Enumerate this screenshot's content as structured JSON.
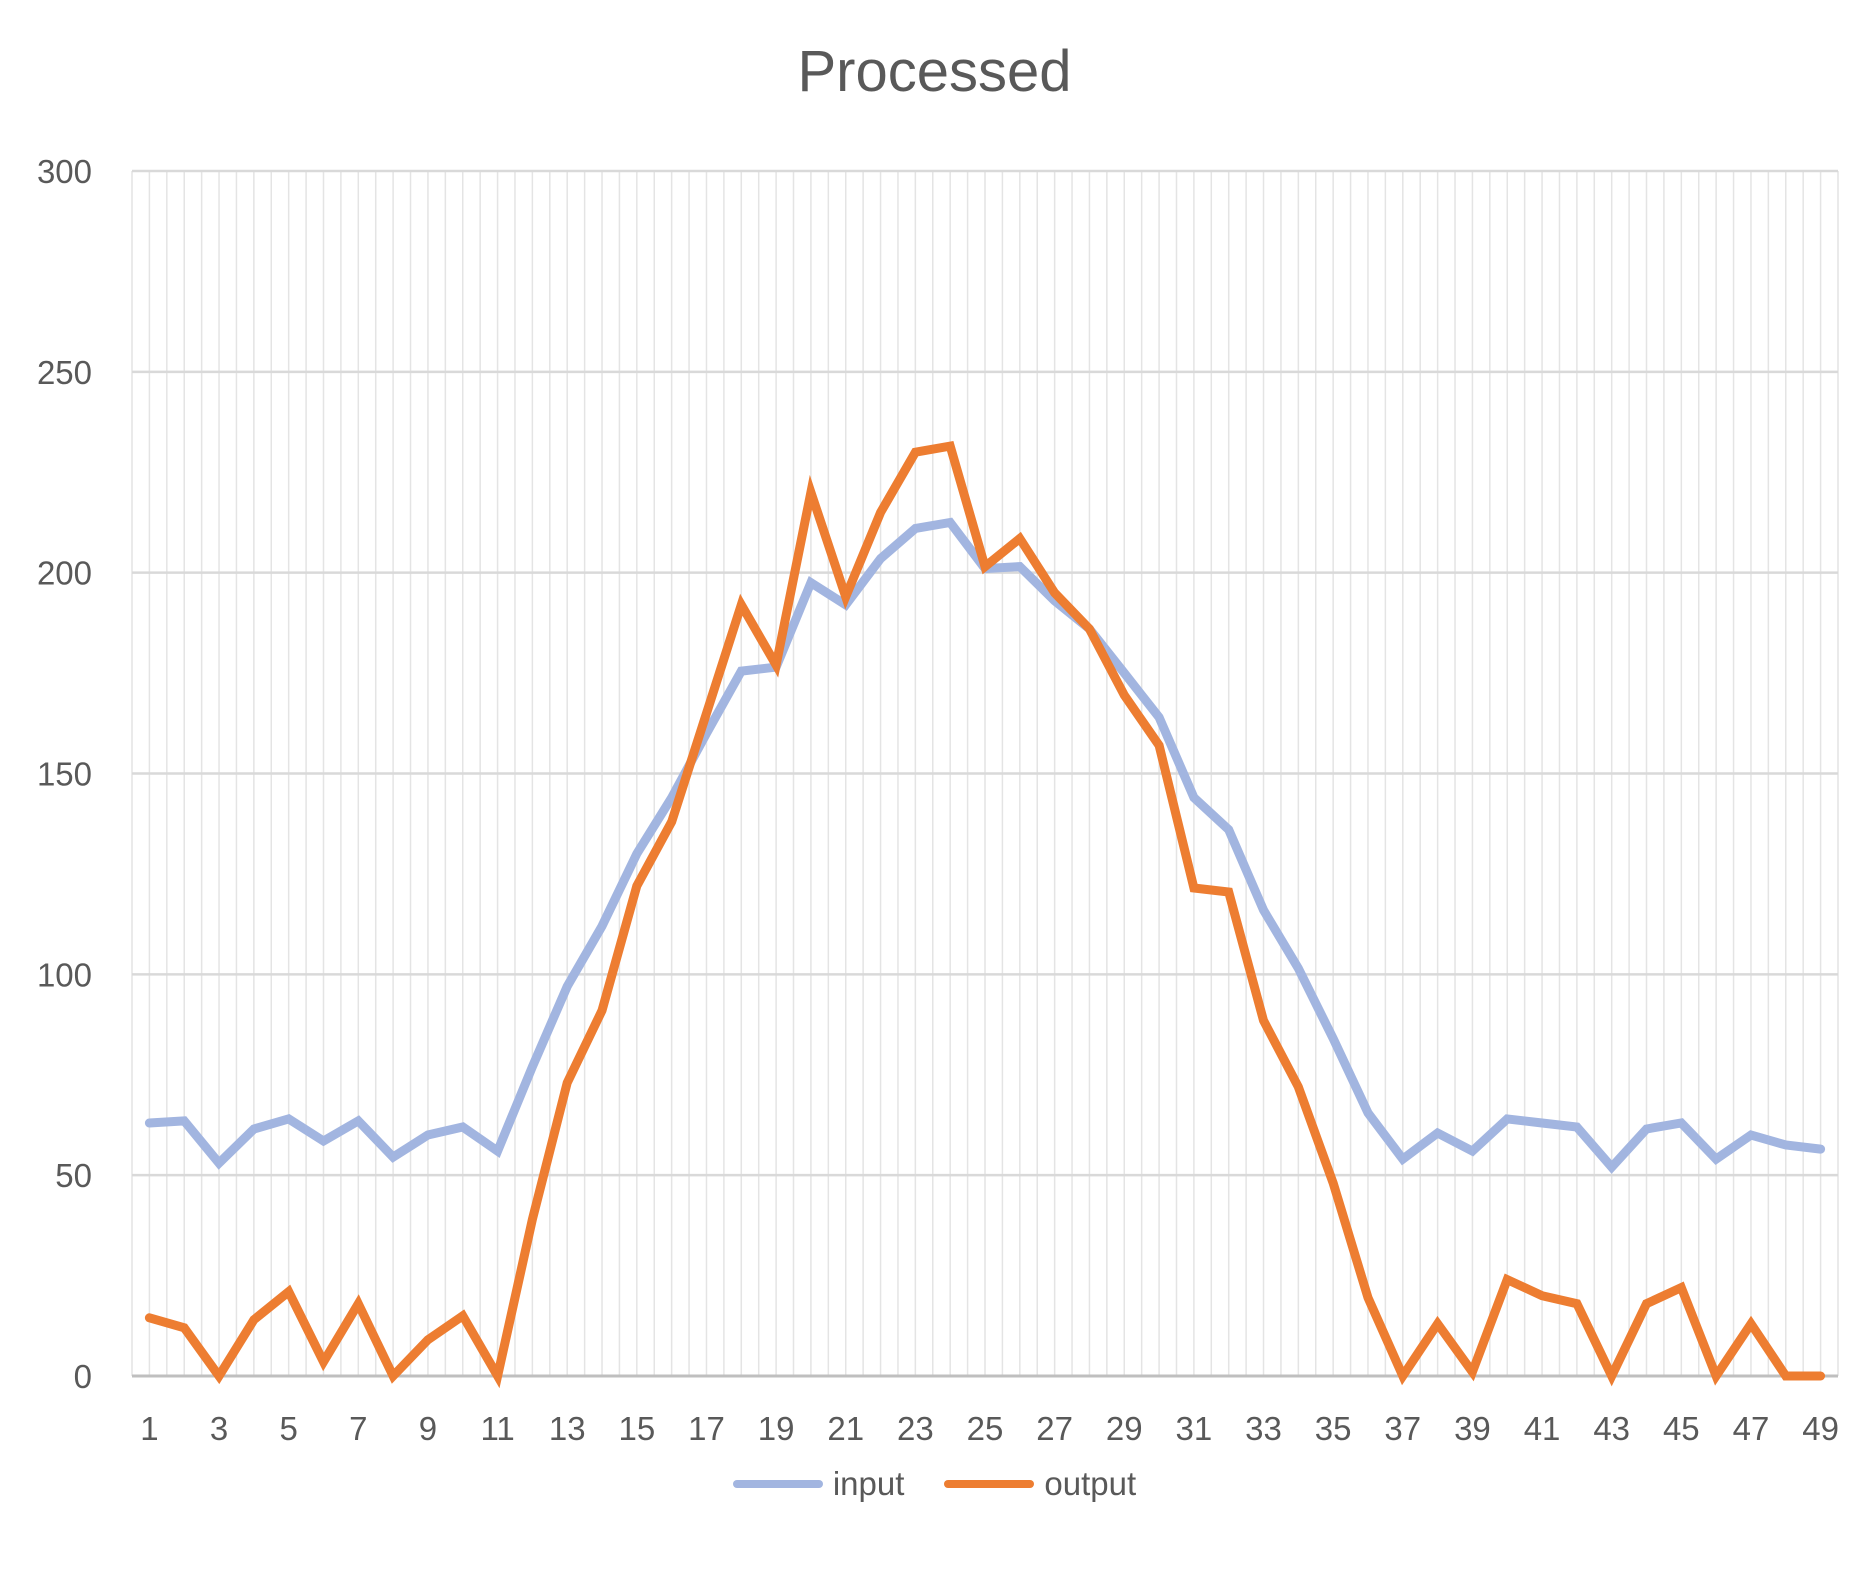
{
  "chart_data": {
    "type": "line",
    "title": "Processed",
    "xlabel": "",
    "ylabel": "",
    "ylim": [
      0,
      300
    ],
    "yticks": [
      0,
      50,
      100,
      150,
      200,
      250,
      300
    ],
    "x": [
      1,
      2,
      3,
      4,
      5,
      6,
      7,
      8,
      9,
      10,
      11,
      12,
      13,
      14,
      15,
      16,
      17,
      18,
      19,
      20,
      21,
      22,
      23,
      24,
      25,
      26,
      27,
      28,
      29,
      30,
      31,
      32,
      33,
      34,
      35,
      36,
      37,
      38,
      39,
      40,
      41,
      42,
      43,
      44,
      45,
      46,
      47,
      48,
      49
    ],
    "xtick_labels": [
      "1",
      "3",
      "5",
      "7",
      "9",
      "11",
      "13",
      "15",
      "17",
      "19",
      "21",
      "23",
      "25",
      "27",
      "29",
      "31",
      "33",
      "35",
      "37",
      "39",
      "41",
      "43",
      "45",
      "47",
      "49"
    ],
    "grid": true,
    "legend_position": "bottom",
    "series": [
      {
        "name": "input",
        "color": "#A2B5E0",
        "values": [
          63,
          63.5,
          53,
          61.5,
          64,
          58.5,
          63.5,
          54.5,
          60,
          62,
          56,
          77,
          97,
          112,
          130,
          144,
          160,
          175.5,
          176.5,
          197.5,
          192,
          203.5,
          211,
          212.5,
          201,
          201.5,
          193,
          186,
          175,
          164,
          144,
          136,
          116,
          101.5,
          84,
          65.5,
          54,
          60.5,
          56,
          64,
          63,
          62,
          52,
          61.5,
          63,
          54,
          60,
          57.5,
          56.5
        ]
      },
      {
        "name": "output",
        "color": "#ED7D31",
        "values": [
          14.5,
          12,
          0,
          14,
          21,
          3.5,
          18,
          0,
          9,
          15,
          0,
          39,
          73,
          91,
          122,
          138,
          165,
          192,
          177,
          220,
          194,
          215,
          230,
          231.5,
          201.5,
          208.5,
          195,
          186,
          169.5,
          157,
          121.5,
          120.5,
          88.5,
          72,
          48,
          19.5,
          0,
          13,
          1,
          24,
          20,
          18,
          0,
          18,
          22,
          0,
          13,
          0,
          0
        ]
      }
    ]
  }
}
